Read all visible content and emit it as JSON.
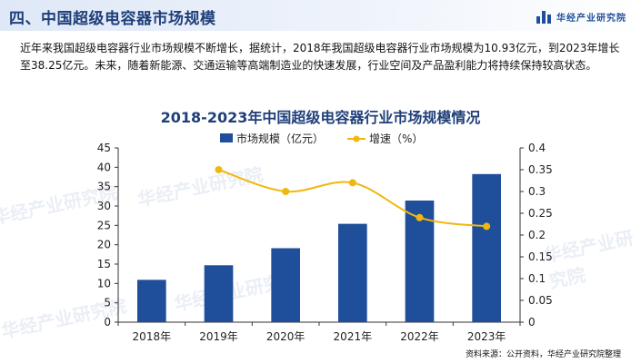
{
  "header": {
    "title": "四、中国超级电容器市场规模",
    "brand": "华经产业研究院"
  },
  "intro": "近年来我国超级电容器行业市场规模不断增长，据统计，2018年我国超级电容器行业市场规模为10.93亿元，到2023年增长至38.25亿元。未来，随着新能源、交通运输等高端制造业的快速发展，行业空间及产品盈利能力将持续保持较高状态。",
  "watermark": "华经产业研究院",
  "source": "资料来源：公开资料，华经产业研究院整理",
  "colors": {
    "bar": "#1f4e9a",
    "line": "#f0b70f",
    "title": "#1f3f7a"
  },
  "chart_data": {
    "type": "bar",
    "title": "2018-2023年中国超级电容器行业市场规模情况",
    "categories": [
      "2018年",
      "2019年",
      "2020年",
      "2021年",
      "2022年",
      "2023年"
    ],
    "series": [
      {
        "name": "市场规模（亿元）",
        "type": "bar",
        "axis": "left",
        "values": [
          10.93,
          14.7,
          19.1,
          25.4,
          31.4,
          38.25
        ]
      },
      {
        "name": "增速（%）",
        "type": "line",
        "axis": "right",
        "values": [
          null,
          0.35,
          0.3,
          0.32,
          0.24,
          0.22
        ]
      }
    ],
    "y_left": {
      "min": 0,
      "max": 45,
      "ticks": [
        "0",
        "5",
        "10",
        "15",
        "20",
        "25",
        "30",
        "35",
        "40",
        "45"
      ]
    },
    "y_right": {
      "min": 0,
      "max": 0.4,
      "ticks": [
        "0",
        "0.05",
        "0.1",
        "0.15",
        "0.2",
        "0.25",
        "0.3",
        "0.35",
        "0.4"
      ]
    },
    "legend": "top-center",
    "grid": false
  }
}
